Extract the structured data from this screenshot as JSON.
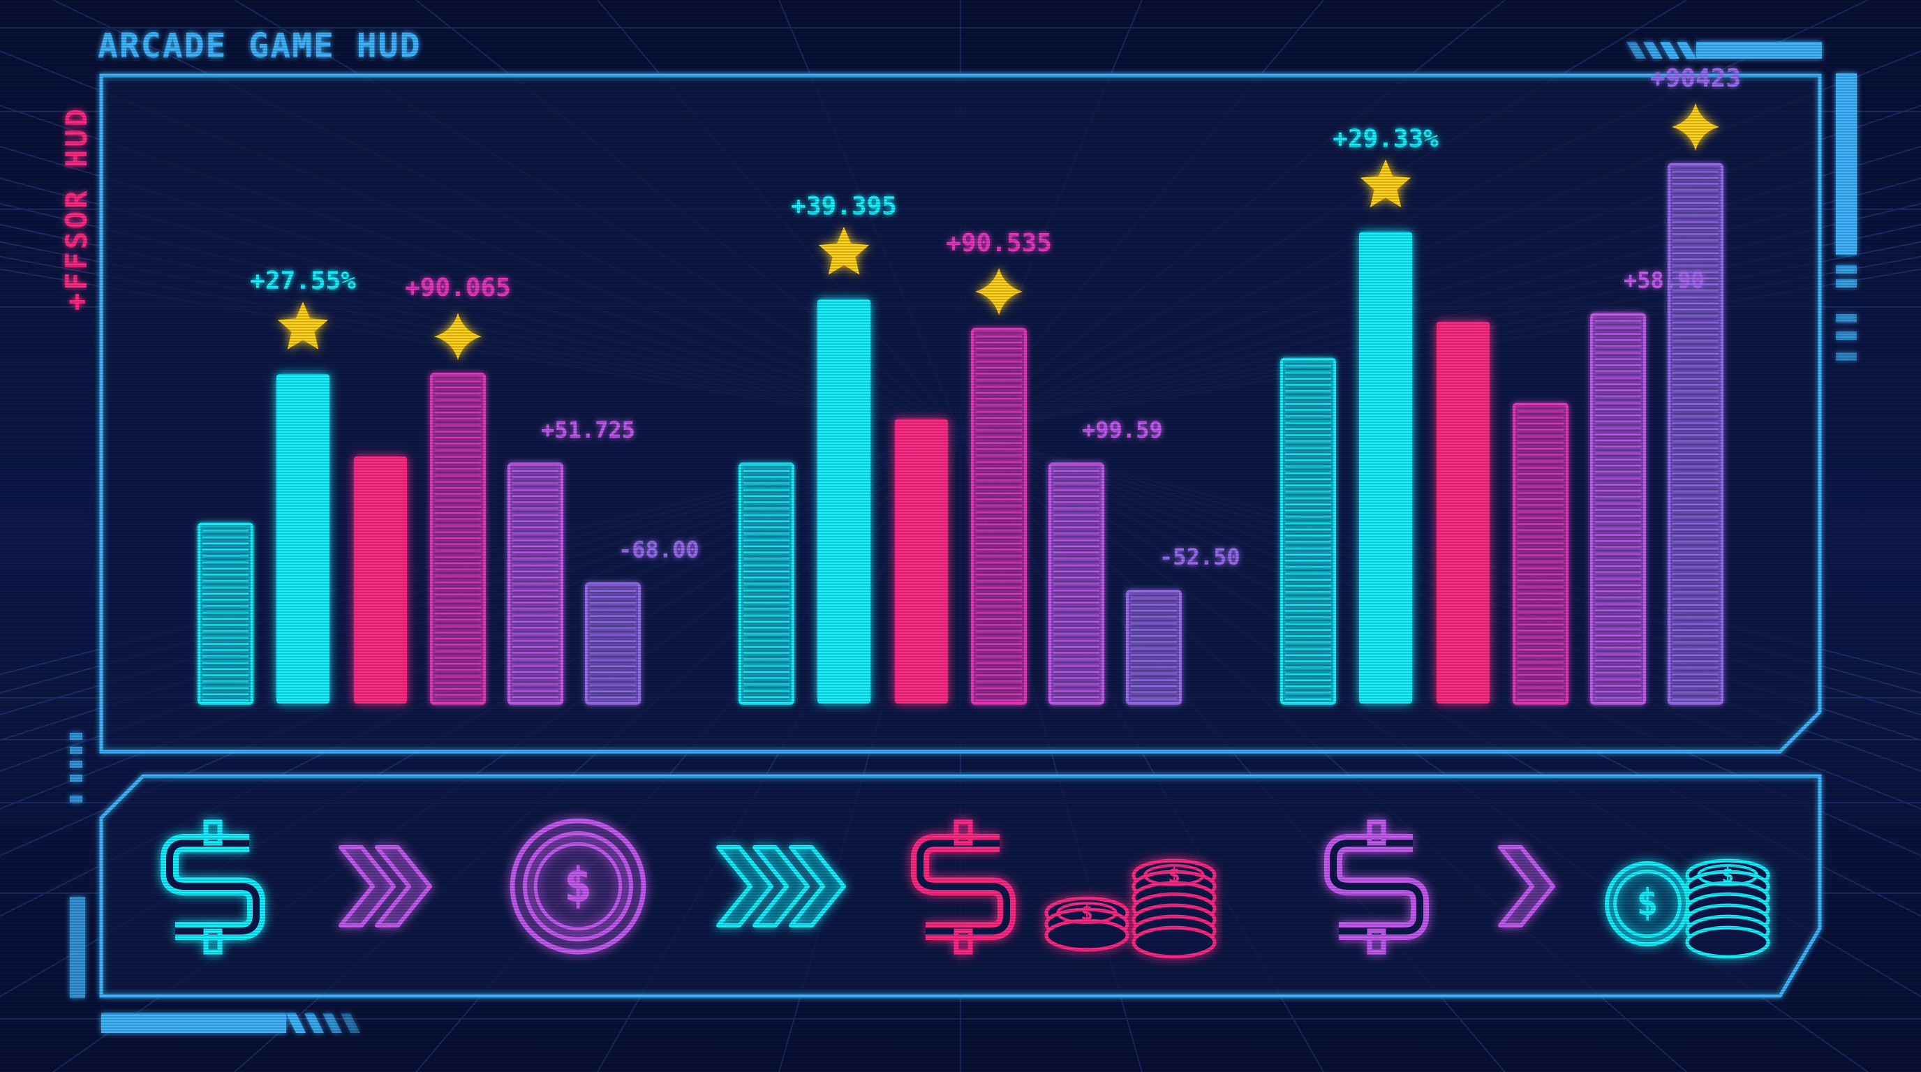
{
  "hud": {
    "title": "ARCADE GAME HUD",
    "side_label": "+FFSOR HUD"
  },
  "colors": {
    "background": "#0a1034",
    "frame": "#3fb6ff",
    "cyan": "#17f2ff",
    "pink": "#ff2a86",
    "magenta": "#e838c0",
    "violet": "#c45cf0",
    "purple": "#9a6cf0",
    "star": "#ffd21e"
  },
  "chart_data": {
    "type": "bar",
    "groups": [
      {
        "name": "",
        "bars": [
          {
            "value": 24,
            "color": "cyan",
            "style": "striped",
            "label": "",
            "marker": ""
          },
          {
            "value": 44,
            "color": "cyan",
            "style": "solid",
            "label": "+27.55%",
            "marker": "star"
          },
          {
            "value": 33,
            "color": "pink",
            "style": "solid",
            "label": "",
            "marker": ""
          },
          {
            "value": 44,
            "color": "magenta",
            "style": "striped",
            "label": "+90.065",
            "marker": "sparkle"
          },
          {
            "value": 32,
            "color": "violet",
            "style": "striped",
            "label": "+51.725",
            "marker": ""
          },
          {
            "value": 16,
            "color": "purple",
            "style": "striped",
            "label": "-68.00",
            "marker": ""
          }
        ]
      },
      {
        "name": "",
        "bars": [
          {
            "value": 32,
            "color": "cyan",
            "style": "striped",
            "label": "",
            "marker": ""
          },
          {
            "value": 54,
            "color": "cyan",
            "style": "solid",
            "label": "+39.395",
            "marker": "star"
          },
          {
            "value": 38,
            "color": "pink",
            "style": "solid",
            "label": "",
            "marker": ""
          },
          {
            "value": 50,
            "color": "magenta",
            "style": "striped",
            "label": "+90.535",
            "marker": "sparkle"
          },
          {
            "value": 32,
            "color": "violet",
            "style": "striped",
            "label": "+99.59",
            "marker": ""
          },
          {
            "value": 15,
            "color": "purple",
            "style": "striped",
            "label": "-52.50",
            "marker": ""
          }
        ]
      },
      {
        "name": "",
        "bars": [
          {
            "value": 46,
            "color": "cyan",
            "style": "striped",
            "label": "",
            "marker": ""
          },
          {
            "value": 63,
            "color": "cyan",
            "style": "solid",
            "label": "+29.33%",
            "marker": "star"
          },
          {
            "value": 51,
            "color": "pink",
            "style": "solid",
            "label": "",
            "marker": ""
          },
          {
            "value": 40,
            "color": "magenta",
            "style": "striped",
            "label": "",
            "marker": ""
          },
          {
            "value": 52,
            "color": "violet",
            "style": "striped",
            "label": "+58.90",
            "marker": ""
          },
          {
            "value": 72,
            "color": "purple",
            "style": "striped",
            "label": "+90423",
            "marker": "sparkle"
          }
        ]
      }
    ],
    "ylim": [
      0,
      80
    ],
    "grid": false,
    "legend": "none"
  },
  "icon_strip": [
    {
      "icon": "dollar-sign-icon",
      "color": "cyan"
    },
    {
      "icon": "double-chevron-right-icon",
      "color": "violet"
    },
    {
      "icon": "dollar-coin-icon",
      "color": "violet"
    },
    {
      "icon": "triple-chevron-right-icon",
      "color": "cyan"
    },
    {
      "icon": "dollar-sign-icon",
      "color": "pink"
    },
    {
      "icon": "coin-stack-icon",
      "color": "pink"
    },
    {
      "icon": "dollar-sign-icon",
      "color": "violet"
    },
    {
      "icon": "chevron-right-icon",
      "color": "violet"
    },
    {
      "icon": "coin-stack-icon",
      "color": "cyan"
    }
  ]
}
